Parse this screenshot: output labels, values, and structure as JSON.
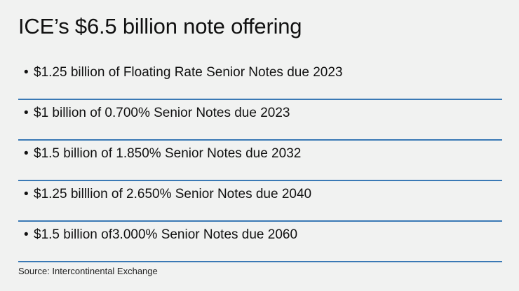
{
  "title": "ICE’s $6.5 billion note offering",
  "bullet_glyph": "•",
  "items": [
    "$1.25 billion of Floating Rate Senior Notes due 2023",
    "$1 billion of 0.700% Senior Notes due 2023",
    "$1.5 billion of 1.850% Senior Notes due 2032",
    "$1.25 billlion of 2.650% Senior Notes due 2040",
    "$1.5 billion of3.000% Senior Notes due 2060"
  ],
  "source": "Source: Intercontinental Exchange",
  "colors": {
    "background": "#f1f2f1",
    "rule": "#3a79b5",
    "text": "#111111"
  }
}
